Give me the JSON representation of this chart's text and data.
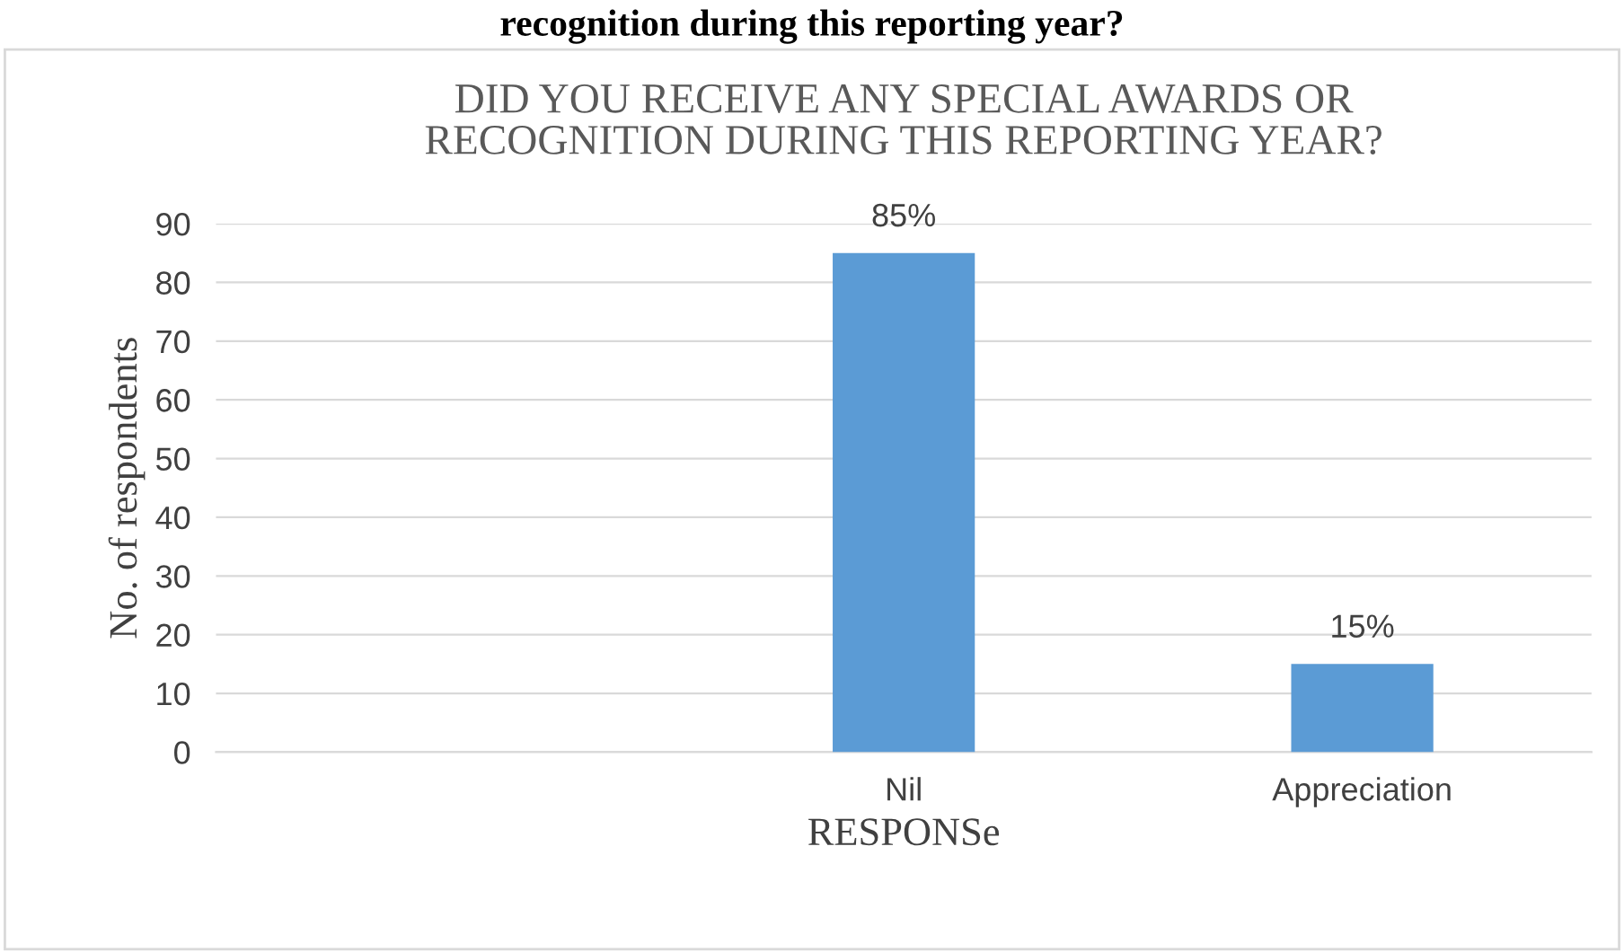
{
  "chart_data": {
    "type": "bar",
    "title": "DID YOU RECEIVE ANY SPECIAL AWARDS OR\nRECOGNITION DURING THIS REPORTING YEAR?",
    "categories": [
      null,
      "Nil",
      "Appreciation"
    ],
    "values": [
      null,
      85,
      15
    ],
    "value_labels": [
      null,
      "85%",
      "15%"
    ],
    "color": "#5b9bd5",
    "xlabel": "RESPONSe",
    "ylabel": "No. of respondents",
    "ylim": [
      0,
      90
    ],
    "yticks": [
      0,
      10,
      20,
      30,
      40,
      50,
      60,
      70,
      80,
      90
    ],
    "grid": "y",
    "annotations": [
      "recognition during this reporting year?"
    ]
  }
}
